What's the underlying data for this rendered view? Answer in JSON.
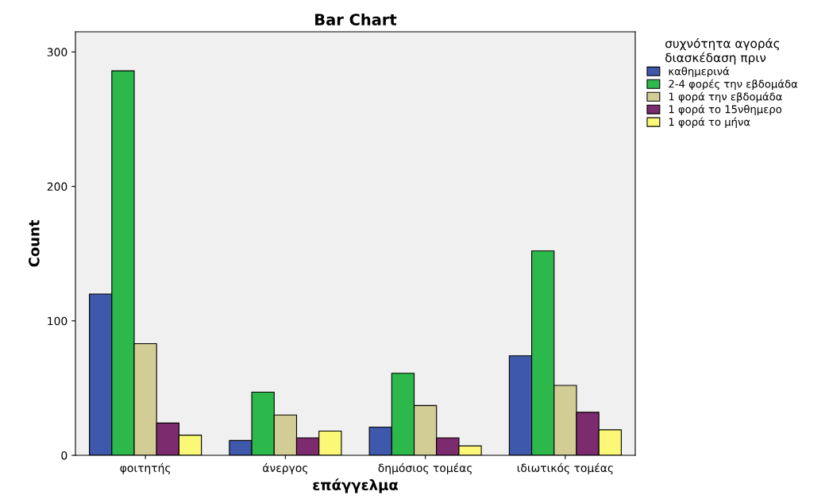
{
  "chart_data": {
    "type": "bar",
    "title": "Bar Chart",
    "xlabel": "επάγγελμα",
    "ylabel": "Count",
    "legend_title": "συχνότητα αγοράς\nδιασκέδαση πριν",
    "categories": [
      "φοιτητής",
      "άνεργος",
      "δημόσιος τομέας",
      "ιδιωτικός τομέας"
    ],
    "series": [
      {
        "name": "καθημερινά",
        "color": "#3e58ac",
        "values": [
          120,
          11,
          21,
          74
        ]
      },
      {
        "name": "2-4 φορές την εβδομάδα",
        "color": "#2db84b",
        "values": [
          286,
          47,
          61,
          152
        ]
      },
      {
        "name": "1 φορά την εβδομάδα",
        "color": "#d2cc95",
        "values": [
          83,
          30,
          37,
          52
        ]
      },
      {
        "name": "1 φορά το 15νθημερο",
        "color": "#7b2b6e",
        "values": [
          24,
          13,
          13,
          32
        ]
      },
      {
        "name": "1 φορά το μήνα",
        "color": "#fbf878",
        "values": [
          15,
          18,
          7,
          19
        ]
      }
    ],
    "ylim": [
      0,
      315
    ],
    "yticks": [
      0,
      100,
      200,
      300
    ],
    "grid": false,
    "legend": "right"
  }
}
